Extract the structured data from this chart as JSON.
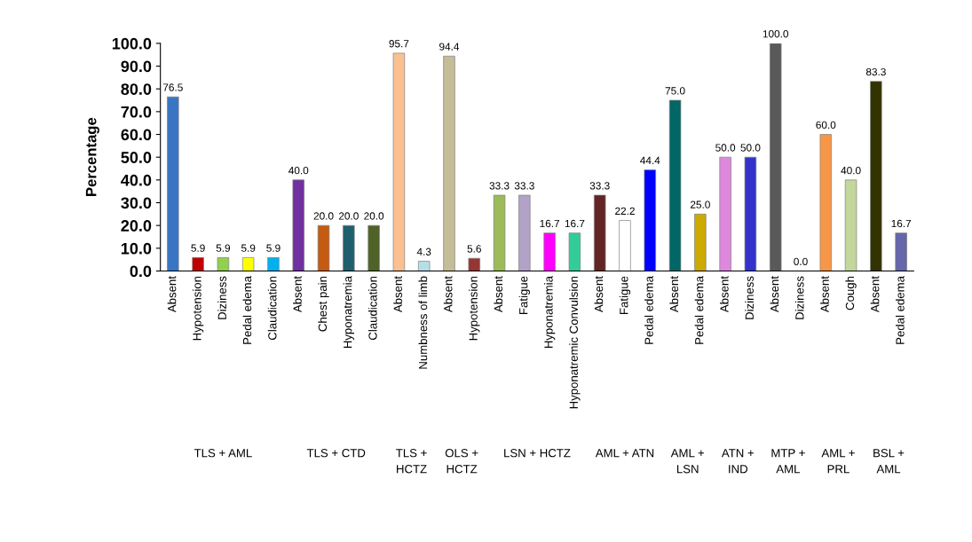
{
  "chart_data": [
    {
      "type": "bar",
      "xlabel": "TLS + AML",
      "ylabel": "Percentage",
      "categories": [
        "Absent",
        "Hypotension",
        "Diziness",
        "Pedal edema",
        "Claudication"
      ],
      "values": [
        76.5,
        5.9,
        5.9,
        5.9,
        5.9
      ],
      "value_labels": [
        "76.5",
        "5.9",
        "5.9",
        "5.9",
        "5.9"
      ],
      "colors": [
        "#3a75c4",
        "#c00000",
        "#92d050",
        "#ffff00",
        "#00b0f0"
      ],
      "ylim": [
        0,
        100
      ],
      "yticks": [
        {
          "value": 0,
          "label": "0.0"
        },
        {
          "value": 10,
          "label": "10.0"
        },
        {
          "value": 20,
          "label": "20.0"
        },
        {
          "value": 30,
          "label": "30.0"
        },
        {
          "value": 40,
          "label": "40.0"
        },
        {
          "value": 50,
          "label": "50.0"
        },
        {
          "value": 60,
          "label": "60.0"
        },
        {
          "value": 70,
          "label": "70.0"
        },
        {
          "value": 80,
          "label": "80.0"
        },
        {
          "value": 90,
          "label": "90.0"
        },
        {
          "value": 100,
          "label": "100.0"
        }
      ]
    },
    {
      "type": "bar",
      "xlabel": "TLS + CTD",
      "categories": [
        "Absent",
        "Chest pain",
        "Hyponatremia",
        "Claudication"
      ],
      "values": [
        40,
        20,
        20,
        20
      ],
      "value_labels": [
        "40.0",
        "20.0",
        "20.0",
        "20.0"
      ],
      "colors": [
        "#7030a0",
        "#c55a11",
        "#1f5f6e",
        "#4f6228"
      ],
      "ylim": [
        0,
        100
      ],
      "tick_labels": "x"
    },
    {
      "type": "bar",
      "xlabel": "TLS + HCTZ",
      "categories": [
        "Absent",
        "Numbness of limb"
      ],
      "values": [
        95.7,
        4.3
      ],
      "value_labels": [
        "95.7",
        "4.3"
      ],
      "colors": [
        "#fac090",
        "#b7dee8"
      ],
      "ylim": [
        0,
        100
      ],
      "tick_labels": "x"
    },
    {
      "type": "bar",
      "xlabel": "OLS + HCTZ",
      "categories": [
        "Absent",
        "Hypotension"
      ],
      "values": [
        94.4,
        5.6
      ],
      "value_labels": [
        "94.4",
        "5.6"
      ],
      "colors": [
        "#c4bd97",
        "#943634"
      ],
      "ylim": [
        0,
        100
      ],
      "tick_labels": "x"
    },
    {
      "type": "bar",
      "xlabel": "LSN + HCTZ",
      "categories": [
        "Absent",
        "Fatigue",
        "Hyponatremia",
        "Hyponatremic Convulsion"
      ],
      "values": [
        33.3,
        33.3,
        16.7,
        16.7
      ],
      "value_labels": [
        "33.3",
        "33.3",
        "16.7",
        "16.7"
      ],
      "colors": [
        "#9bbb59",
        "#b3a2c7",
        "#ff00ff",
        "#33cc99"
      ],
      "ylim": [
        0,
        100
      ],
      "tick_labels": "x"
    },
    {
      "type": "bar",
      "xlabel": "AML + ATN",
      "categories": [
        "Absent",
        "Fatigue",
        "Pedal edema"
      ],
      "values": [
        33.3,
        22.2,
        44.4
      ],
      "value_labels": [
        "33.3",
        "22.2",
        "44.4"
      ],
      "colors": [
        "#632523",
        "#ffffff",
        "#0000ff"
      ],
      "ylim": [
        0,
        100
      ],
      "tick_labels": "x"
    },
    {
      "type": "bar",
      "xlabel": "AML + LSN",
      "categories": [
        "Absent",
        "Pedal edema"
      ],
      "values": [
        75,
        25
      ],
      "value_labels": [
        "75.0",
        "25.0"
      ],
      "colors": [
        "#006666",
        "#ccaa00"
      ],
      "ylim": [
        0,
        100
      ],
      "tick_labels": "x"
    },
    {
      "type": "bar",
      "xlabel": "ATN + IND",
      "categories": [
        "Absent",
        "Diziness"
      ],
      "values": [
        50,
        50
      ],
      "value_labels": [
        "50.0",
        "50.0"
      ],
      "colors": [
        "#dd88dd",
        "#3333cc"
      ],
      "ylim": [
        0,
        100
      ],
      "tick_labels": "x"
    },
    {
      "type": "bar",
      "xlabel": "MTP + AML",
      "categories": [
        "Absent",
        "Diziness"
      ],
      "values": [
        100,
        0
      ],
      "value_labels": [
        "100.0",
        "0.0"
      ],
      "colors": [
        "#595959",
        "#b7c9e8"
      ],
      "ylim": [
        0,
        100
      ],
      "tick_labels": "x"
    },
    {
      "type": "bar",
      "xlabel": "AML + PRL",
      "categories": [
        "Absent",
        "Cough"
      ],
      "values": [
        60,
        40
      ],
      "value_labels": [
        "60.0",
        "40.0"
      ],
      "colors": [
        "#f79646",
        "#c3d69b"
      ],
      "ylim": [
        0,
        100
      ],
      "tick_labels": "x"
    },
    {
      "type": "bar",
      "xlabel": "BSL + AML",
      "categories": [
        "Absent",
        "Pedal edema"
      ],
      "values": [
        83.3,
        16.7
      ],
      "value_labels": [
        "83.3",
        "16.7"
      ],
      "colors": [
        "#333300",
        "#6666aa"
      ],
      "ylim": [
        0,
        100
      ],
      "tick_labels": "x"
    }
  ]
}
